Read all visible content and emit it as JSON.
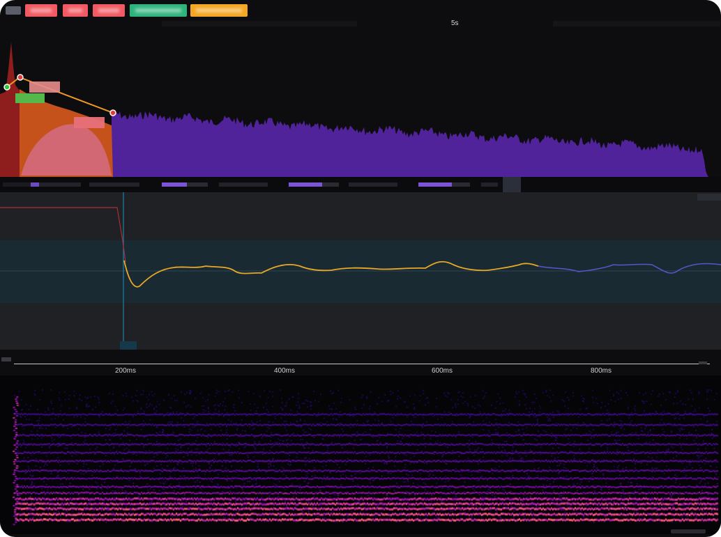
{
  "toolbar": {
    "buttons": [
      {
        "name": "toolbar-button-1",
        "color": "#f25a63"
      },
      {
        "name": "toolbar-button-2",
        "color": "#f25a63"
      },
      {
        "name": "toolbar-button-3",
        "color": "#f25a63"
      },
      {
        "name": "toolbar-button-4",
        "color": "#2fb37c"
      },
      {
        "name": "toolbar-button-5",
        "color": "#f5a623"
      }
    ]
  },
  "ruler": {
    "label": "5s"
  },
  "timeline": {
    "tick_labels": [
      "200ms",
      "400ms",
      "600ms",
      "800ms"
    ]
  },
  "colors": {
    "waveform": "#51239a",
    "envelope_attack": "#8e1d1e",
    "envelope_decay": "#c5511b",
    "envelope_sustain": "#d36c82",
    "envelope_line": "#f09a24",
    "pitch_line": "#e9a825",
    "pitch_line_tail": "#5b55c9",
    "band": "#1a2a33"
  },
  "envelope_handles": [
    "attack-handle",
    "decay-handle",
    "sustain-handle"
  ]
}
